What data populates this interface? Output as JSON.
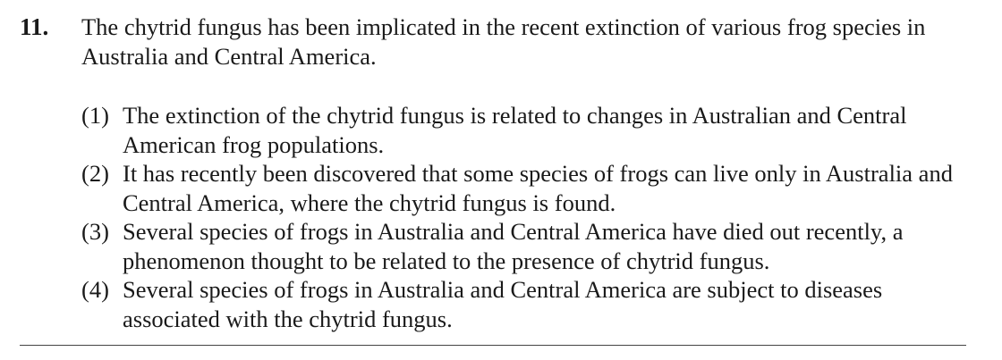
{
  "question": {
    "number": "11.",
    "stem": "The chytrid fungus has been implicated in the recent extinction of various frog species in Australia and Central America."
  },
  "options": [
    {
      "number": "(1)",
      "text": "The extinction of the chytrid fungus is related to changes in Australian and Central American frog populations."
    },
    {
      "number": "(2)",
      "text": "It has recently been discovered that some species of frogs can live only in Australia and Central America, where the chytrid fungus is found."
    },
    {
      "number": "(3)",
      "text": "Several species of frogs in Australia and Central America have died out recently, a phenomenon thought to be related to the presence of chytrid fungus."
    },
    {
      "number": "(4)",
      "text": "Several species of frogs in Australia and Central America are subject to diseases associated with the chytrid fungus."
    }
  ]
}
